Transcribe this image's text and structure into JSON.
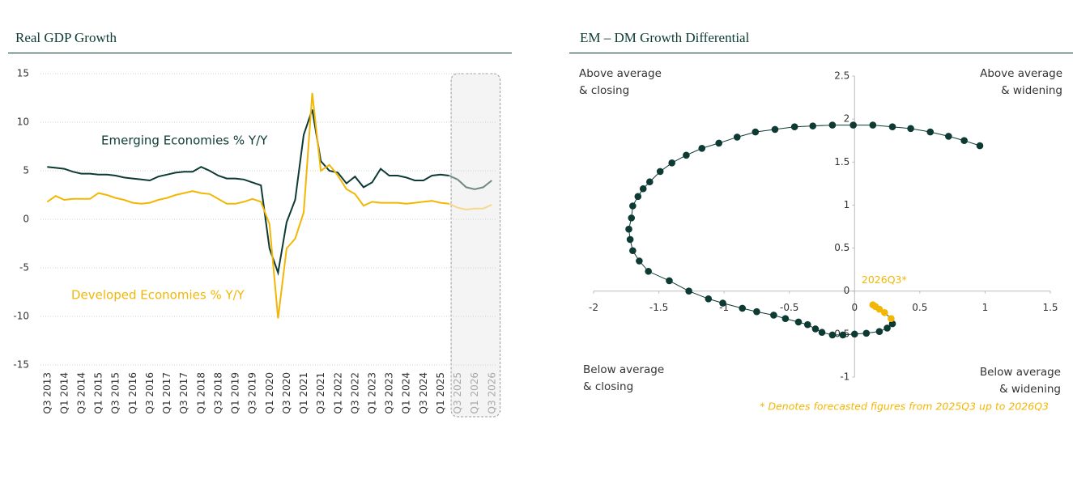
{
  "chart_data": [
    {
      "type": "line",
      "title": "Real GDP Growth",
      "categories": [
        "Q3 2013",
        null,
        "Q1 2014",
        null,
        "Q3 2014",
        null,
        "Q1 2015",
        null,
        "Q3 2015",
        null,
        "Q1 2016",
        null,
        "Q3 2016",
        null,
        "Q1 2017",
        null,
        "Q3 2017",
        null,
        "Q1 2018",
        null,
        "Q3 2018",
        null,
        "Q1 2019",
        null,
        "Q3 2019",
        null,
        "Q1 2020",
        null,
        "Q3 2020",
        null,
        "Q1 2021",
        null,
        "Q3 2021",
        null,
        "Q1 2022",
        null,
        "Q3 2022",
        null,
        "Q1 2023",
        null,
        "Q3 2023",
        null,
        "Q1 2024",
        null,
        "Q3 2024",
        null,
        "Q1 2025",
        null,
        "Q3 2025",
        null,
        "Q1 2026",
        null,
        "Q3 2026"
      ],
      "ylim": [
        -15,
        15
      ],
      "yticks": [
        -15,
        -10,
        -5,
        0,
        5,
        10,
        15
      ],
      "grid": true,
      "series": [
        {
          "name": "Emerging Economies % Y/Y",
          "color": "#0d3b34",
          "forecast_color": "#6e8a84",
          "values": [
            5.4,
            5.3,
            5.2,
            4.9,
            4.7,
            4.7,
            4.6,
            4.6,
            4.5,
            4.3,
            4.2,
            4.1,
            4.0,
            4.4,
            4.6,
            4.8,
            4.9,
            4.9,
            5.4,
            5.0,
            4.5,
            4.2,
            4.2,
            4.1,
            3.8,
            3.5,
            -3.0,
            -5.5,
            -0.3,
            2.0,
            8.7,
            11.3,
            6.0,
            5.0,
            4.8,
            3.7,
            4.4,
            3.3,
            3.8,
            5.2,
            4.5,
            4.5,
            4.3,
            4.0,
            4.0,
            4.5,
            4.6,
            4.5,
            null,
            null,
            null,
            null,
            null
          ],
          "forecast_values": [
            null,
            null,
            null,
            null,
            null,
            null,
            null,
            null,
            null,
            null,
            null,
            null,
            null,
            null,
            null,
            null,
            null,
            null,
            null,
            null,
            null,
            null,
            null,
            null,
            null,
            null,
            null,
            null,
            null,
            null,
            null,
            null,
            null,
            null,
            null,
            null,
            null,
            null,
            null,
            null,
            null,
            null,
            null,
            null,
            null,
            null,
            null,
            null,
            4.1,
            3.3,
            3.1,
            3.3,
            4.0
          ]
        },
        {
          "name": "Developed Economies % Y/Y",
          "color": "#f2b705",
          "forecast_color": "#f5d98a",
          "values": [
            1.8,
            2.4,
            2.0,
            2.1,
            2.1,
            2.1,
            2.7,
            2.5,
            2.2,
            2.0,
            1.7,
            1.6,
            1.7,
            2.0,
            2.2,
            2.5,
            2.7,
            2.9,
            2.7,
            2.6,
            2.1,
            1.6,
            1.6,
            1.8,
            2.1,
            1.8,
            -0.5,
            -10.2,
            -3.0,
            -2.0,
            0.7,
            13.0,
            5.0,
            5.6,
            4.5,
            3.1,
            2.6,
            1.4,
            1.8,
            1.7,
            1.7,
            1.7,
            1.6,
            1.7,
            1.8,
            1.9,
            1.7,
            1.6,
            null,
            null,
            null,
            null,
            null
          ],
          "forecast_values": [
            null,
            null,
            null,
            null,
            null,
            null,
            null,
            null,
            null,
            null,
            null,
            null,
            null,
            null,
            null,
            null,
            null,
            null,
            null,
            null,
            null,
            null,
            null,
            null,
            null,
            null,
            null,
            null,
            null,
            null,
            null,
            null,
            null,
            null,
            null,
            null,
            null,
            null,
            null,
            null,
            null,
            null,
            null,
            null,
            null,
            null,
            null,
            null,
            1.2,
            1.0,
            1.1,
            1.1,
            1.5
          ]
        }
      ]
    },
    {
      "type": "scatter",
      "title": "EM – DM Growth Differential",
      "xlim": [
        -2,
        1.5
      ],
      "ylim": [
        -1,
        2.5
      ],
      "xticks": [
        -2,
        -1.5,
        -1,
        -0.5,
        0,
        0.5,
        1,
        1.5
      ],
      "yticks": [
        -1,
        -0.5,
        0,
        0.5,
        1,
        1.5,
        2,
        2.5
      ],
      "line_color": "#0d3b34",
      "series": [
        {
          "color": "#0d3b34",
          "x": [
            0.96,
            0.84,
            0.72,
            0.58,
            0.43,
            0.29,
            0.14,
            -0.01,
            -0.17,
            -0.32,
            -0.46,
            -0.61,
            -0.76,
            -0.9,
            -1.04,
            -1.17,
            -1.29,
            -1.4,
            -1.49,
            -1.57,
            -1.62,
            -1.66,
            -1.7,
            -1.71,
            -1.73,
            -1.72,
            -1.7,
            -1.65,
            -1.58,
            -1.42,
            -1.27,
            -1.12,
            -1.01,
            -0.86,
            -0.75,
            -0.62,
            -0.53,
            -0.43,
            -0.36,
            -0.3,
            -0.25,
            -0.17,
            -0.09,
            0.0,
            0.09,
            0.19,
            0.25,
            0.29
          ],
          "y": [
            1.69,
            1.75,
            1.8,
            1.85,
            1.89,
            1.91,
            1.93,
            1.93,
            1.93,
            1.92,
            1.91,
            1.88,
            1.85,
            1.79,
            1.72,
            1.66,
            1.58,
            1.49,
            1.39,
            1.27,
            1.19,
            1.1,
            0.99,
            0.85,
            0.72,
            0.6,
            0.47,
            0.35,
            0.23,
            0.12,
            0.0,
            -0.09,
            -0.14,
            -0.2,
            -0.24,
            -0.28,
            -0.32,
            -0.36,
            -0.39,
            -0.44,
            -0.48,
            -0.51,
            -0.51,
            -0.5,
            -0.49,
            -0.47,
            -0.43,
            -0.38
          ]
        },
        {
          "color": "#f2b705",
          "x": [
            0.28,
            0.23,
            0.19,
            0.16,
            0.14
          ],
          "y": [
            -0.32,
            -0.25,
            -0.21,
            -0.18,
            -0.16
          ]
        }
      ],
      "point_label": "2026Q3*",
      "quadrant_labels": {
        "top_left": [
          "Above average",
          "& closing"
        ],
        "top_right": [
          "Above average",
          "& widening"
        ],
        "bottom_left": [
          "Below average",
          "& closing"
        ],
        "bottom_right": [
          "Below average",
          "& widening"
        ]
      },
      "footnote": "* Denotes forecasted figures from 2025Q3 up to 2026Q3"
    }
  ]
}
